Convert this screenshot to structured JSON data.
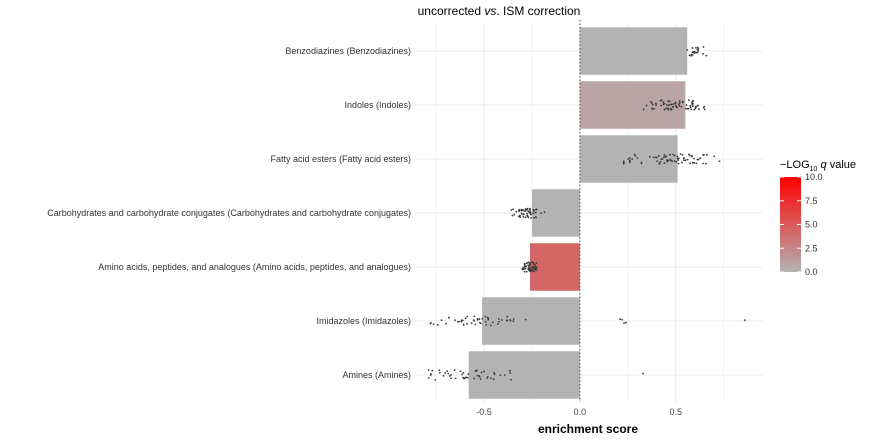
{
  "chart_data": {
    "type": "bar",
    "orientation": "horizontal",
    "title_parts": {
      "before": "uncorrected ",
      "italic": "vs",
      "after": ". ISM correction"
    },
    "xlabel": "enrichment score",
    "ylabel": "",
    "xlim": [
      -0.86,
      0.95
    ],
    "xticks": [
      -0.5,
      0.0,
      0.5
    ],
    "xtick_labels": [
      "-0.5",
      "0.0",
      "0.5"
    ],
    "grid": true,
    "reference_line_x": 0,
    "categories": [
      "Benzodiazines (Benzodiazines)",
      "Indoles (Indoles)",
      "Fatty acid esters (Fatty acid esters)",
      "Carbohydrates and carbohydrate conjugates (Carbohydrates and carbohydrate conjugates)",
      "Amino acids, peptides, and analogues (Amino acids, peptides, and analogues)",
      "Imidazoles (Imidazoles)",
      "Amines (Amines)"
    ],
    "values": [
      0.56,
      0.55,
      0.51,
      -0.25,
      -0.26,
      -0.51,
      -0.58
    ],
    "neg_log10_q": [
      0.0,
      0.8,
      0.0,
      0.0,
      4.3,
      0.0,
      0.0
    ],
    "points": [
      {
        "min": 0.55,
        "max": 0.66,
        "n": 22,
        "outliers": []
      },
      {
        "min": 0.31,
        "max": 0.68,
        "n": 70,
        "outliers": []
      },
      {
        "min": 0.21,
        "max": 0.73,
        "n": 75,
        "outliers": []
      },
      {
        "min": -0.36,
        "max": -0.17,
        "n": 55,
        "outliers": []
      },
      {
        "min": -0.3,
        "max": -0.22,
        "n": 60,
        "outliers": []
      },
      {
        "min": -0.85,
        "max": -0.25,
        "n": 50,
        "outliers": [
          0.21,
          0.22,
          0.23,
          0.24,
          0.86
        ]
      },
      {
        "min": -0.83,
        "max": -0.3,
        "n": 48,
        "outliers": [
          0.33
        ]
      }
    ],
    "legend": {
      "title_parts": {
        "prefix": "−LOG",
        "sub": "10",
        "italic": " q",
        "suffix": " value"
      },
      "range": [
        0,
        10
      ],
      "ticks": [
        10.0,
        7.5,
        5.0,
        2.5,
        0.0
      ],
      "tick_labels": [
        "10.0",
        "7.5",
        "5.0",
        "2.5",
        "0.0"
      ],
      "low_color": "#b3b3b3",
      "high_color": "#ff0000",
      "placement": "right"
    },
    "colors": {
      "bar_base": "#b3b3b3",
      "bar_high": "#ff0000",
      "point": "#3a3a3a",
      "grid": "#ebebeb"
    }
  }
}
